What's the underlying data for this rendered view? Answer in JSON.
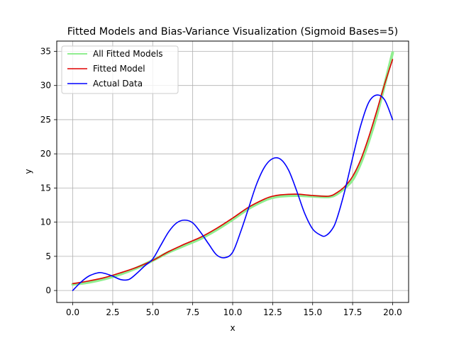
{
  "chart_data": {
    "type": "line",
    "title": "Fitted Models and Bias-Variance Visualization (Sigmoid Bases=5)",
    "xlabel": "x",
    "ylabel": "y",
    "xlim": [
      -1,
      21
    ],
    "ylim": [
      -1.75,
      36.5
    ],
    "xticks": [
      0,
      2.5,
      5,
      7.5,
      10,
      12.5,
      15,
      17.5,
      20
    ],
    "xtick_labels": [
      "0.0",
      "2.5",
      "5.0",
      "7.5",
      "10.0",
      "12.5",
      "15.0",
      "17.5",
      "20.0"
    ],
    "yticks": [
      0,
      5,
      10,
      15,
      20,
      25,
      30,
      35
    ],
    "ytick_labels": [
      "0",
      "5",
      "10",
      "15",
      "20",
      "25",
      "30",
      "35"
    ],
    "grid": true,
    "legend": "upper-left",
    "series": [
      {
        "name": "All Fitted Models",
        "color": "#90ee90",
        "width": 4,
        "x": [
          0,
          1,
          2,
          3,
          4,
          5,
          6,
          7,
          8,
          9,
          10,
          11,
          12,
          12.5,
          13,
          14,
          15,
          16,
          16.5,
          17,
          17.5,
          18,
          18.5,
          19,
          19.5,
          20
        ],
        "y": [
          0.9,
          1.2,
          1.7,
          2.4,
          3.3,
          4.4,
          5.6,
          6.6,
          7.6,
          8.9,
          10.4,
          12.0,
          13.2,
          13.6,
          13.8,
          13.9,
          13.8,
          13.7,
          14.1,
          15.0,
          16.2,
          18.6,
          21.8,
          25.6,
          30.1,
          34.8
        ]
      },
      {
        "name": "Fitted Model",
        "color": "#e00000",
        "width": 1.6,
        "x": [
          0,
          1,
          2,
          3,
          4,
          5,
          6,
          7,
          8,
          9,
          10,
          11,
          12,
          12.5,
          13,
          14,
          15,
          16,
          16.5,
          17,
          17.5,
          18,
          18.5,
          19,
          19.5,
          20
        ],
        "y": [
          1.0,
          1.4,
          1.9,
          2.6,
          3.4,
          4.4,
          5.7,
          6.8,
          7.8,
          9.1,
          10.6,
          12.2,
          13.4,
          13.8,
          14.0,
          14.1,
          13.9,
          13.8,
          14.3,
          15.2,
          16.7,
          19.1,
          22.4,
          26.2,
          30.2,
          33.8
        ]
      },
      {
        "name": "Actual Data",
        "color": "#0000ff",
        "width": 1.6,
        "x": [
          0,
          0.5,
          1,
          1.6,
          2,
          2.5,
          3,
          3.5,
          4,
          4.5,
          5,
          5.5,
          6,
          6.5,
          7,
          7.5,
          8,
          8.5,
          9,
          9.5,
          10,
          10.5,
          11,
          11.5,
          12,
          12.5,
          13,
          13.5,
          14,
          14.5,
          15,
          15.5,
          15.8,
          16.2,
          16.5,
          17,
          17.5,
          18,
          18.5,
          19,
          19.5,
          20
        ],
        "y": [
          0.0,
          1.2,
          2.1,
          2.6,
          2.5,
          2.1,
          1.6,
          1.6,
          2.5,
          3.6,
          4.6,
          6.6,
          8.6,
          9.9,
          10.3,
          9.9,
          8.5,
          6.8,
          5.2,
          4.8,
          5.6,
          8.6,
          12.1,
          15.6,
          18.1,
          19.3,
          19.2,
          17.6,
          14.6,
          11.3,
          9.0,
          8.1,
          8.0,
          8.9,
          10.4,
          14.5,
          19.4,
          24.1,
          27.5,
          28.6,
          27.9,
          25.0
        ]
      }
    ]
  }
}
